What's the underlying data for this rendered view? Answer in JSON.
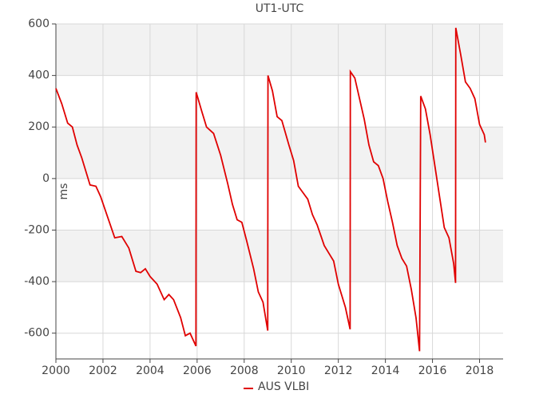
{
  "chart_data": {
    "type": "line",
    "title": "UT1-UTC",
    "ylabel": "ms",
    "x": [
      2000.0,
      2000.25,
      2000.5,
      2000.7,
      2000.9,
      2001.1,
      2001.3,
      2001.45,
      2001.7,
      2001.9,
      2002.2,
      2002.5,
      2002.8,
      2003.1,
      2003.4,
      2003.6,
      2003.8,
      2004.0,
      2004.3,
      2004.6,
      2004.8,
      2005.0,
      2005.3,
      2005.5,
      2005.7,
      2005.95,
      2005.96,
      2006.2,
      2006.4,
      2006.7,
      2007.0,
      2007.3,
      2007.5,
      2007.7,
      2007.9,
      2008.1,
      2008.4,
      2008.6,
      2008.8,
      2009.0,
      2009.01,
      2009.2,
      2009.4,
      2009.6,
      2009.9,
      2010.1,
      2010.3,
      2010.5,
      2010.7,
      2010.9,
      2011.1,
      2011.4,
      2011.6,
      2011.8,
      2012.0,
      2012.3,
      2012.5,
      2012.51,
      2012.7,
      2012.9,
      2013.1,
      2013.3,
      2013.5,
      2013.7,
      2013.9,
      2014.1,
      2014.3,
      2014.5,
      2014.7,
      2014.9,
      2015.1,
      2015.3,
      2015.45,
      2015.5,
      2015.7,
      2015.9,
      2016.1,
      2016.3,
      2016.5,
      2016.7,
      2016.9,
      2016.98,
      2016.99,
      2017.2,
      2017.4,
      2017.6,
      2017.8,
      2018.0,
      2018.2,
      2018.25
    ],
    "series": [
      {
        "name": "AUS VLBI",
        "color": "#e00000",
        "values": [
          350,
          290,
          215,
          200,
          130,
          80,
          20,
          -25,
          -30,
          -70,
          -150,
          -230,
          -225,
          -270,
          -360,
          -365,
          -350,
          -380,
          -410,
          -470,
          -450,
          -470,
          -540,
          -610,
          -600,
          -650,
          335,
          260,
          200,
          175,
          90,
          -20,
          -100,
          -160,
          -170,
          -240,
          -350,
          -440,
          -480,
          -590,
          400,
          340,
          240,
          225,
          130,
          70,
          -30,
          -55,
          -80,
          -140,
          -180,
          -260,
          -290,
          -320,
          -410,
          -500,
          -585,
          415,
          390,
          310,
          230,
          130,
          65,
          50,
          0,
          -90,
          -170,
          -260,
          -310,
          -340,
          -430,
          -540,
          -670,
          320,
          270,
          170,
          50,
          -70,
          -190,
          -230,
          -330,
          -405,
          585,
          480,
          375,
          350,
          310,
          210,
          170,
          140
        ]
      }
    ],
    "xlim": [
      2000,
      2019
    ],
    "xticks": [
      2000,
      2002,
      2004,
      2006,
      2008,
      2010,
      2012,
      2014,
      2016,
      2018
    ],
    "ylim": [
      -700,
      600
    ],
    "yticks": [
      -600,
      -400,
      -200,
      0,
      200,
      400,
      600
    ],
    "grid": true
  }
}
